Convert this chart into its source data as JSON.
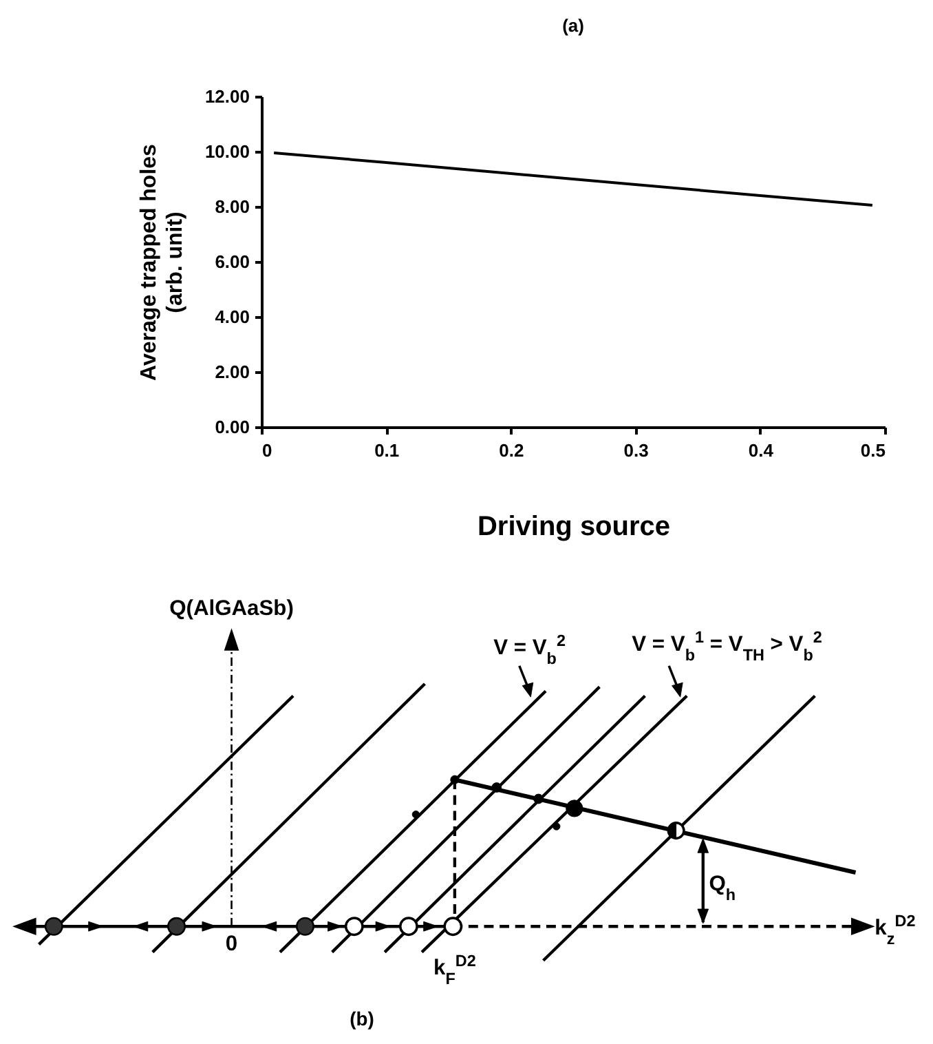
{
  "chart_data": [
    {
      "type": "line",
      "title": "(a)",
      "xlabel": "Driving source",
      "ylabel": "Average trapped holes\n(arb. unit)",
      "x": [
        0.01,
        0.1,
        0.2,
        0.3,
        0.4,
        0.49
      ],
      "series": [
        {
          "color": "#000000",
          "values": [
            9.95,
            9.6,
            9.2,
            8.8,
            8.4,
            8.05
          ]
        }
      ],
      "xlim": [
        0,
        0.5
      ],
      "xticks": [
        0,
        0.1,
        0.2,
        0.3,
        0.4,
        0.5
      ],
      "ylim": [
        0,
        12
      ],
      "yticks": [
        {
          "value": 0,
          "label": "0.00"
        },
        {
          "value": 2,
          "label": "2.00"
        },
        {
          "value": 4,
          "label": "4.00"
        },
        {
          "value": 6,
          "label": "6.00"
        },
        {
          "value": 8,
          "label": "8.00"
        },
        {
          "value": 10,
          "label": "10.00"
        },
        {
          "value": 12,
          "label": "12.00"
        }
      ]
    },
    {
      "type": "other",
      "title": "(b)",
      "annotations": [
        "Q(AlGAaSb)",
        "V = V$_{b}$$^{2}$",
        "V = V$_{b}$$^{1}$ = V$_{TH}$ > V$_{b}$$^{2}$",
        "0",
        "k$_{F}$$^{D2}$",
        "Q$_{h}$",
        "k$_{z}$$^{D2}$"
      ]
    }
  ]
}
